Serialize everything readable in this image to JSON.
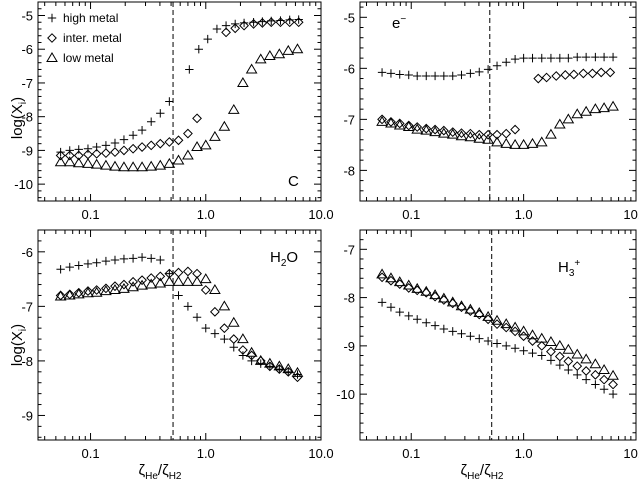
{
  "figure": {
    "xlabel_main": "ζ",
    "xlabel_sub1": "He",
    "xlabel_sep": "/ζ",
    "xlabel_sub2": "H2",
    "ylabel": "log(X",
    "ylabel_sub": "i",
    "ylabel_close": ")"
  },
  "chart_data": [
    {
      "type": "scatter",
      "panel_label": "C",
      "xscale": "log",
      "xlim": [
        0.035,
        10
      ],
      "ylim": [
        -10.5,
        -4.6
      ],
      "xticks": [
        0.1,
        1.0,
        10.0
      ],
      "xticklabels": [
        "0.1",
        "1.0",
        "10.0"
      ],
      "yticks": [
        -10,
        -9,
        -8,
        -7,
        -6,
        -5
      ],
      "yticklabels": [
        "-10",
        "-9",
        "-8",
        "-7",
        "-6",
        "-5"
      ],
      "vline": 0.52,
      "legend": {
        "position": "top-left",
        "entries": [
          "high metal",
          "inter. metal",
          "low metal"
        ]
      },
      "series": [
        {
          "name": "high metal",
          "marker": "plus",
          "x": [
            0.055,
            0.066,
            0.079,
            0.095,
            0.113,
            0.136,
            0.163,
            0.195,
            0.234,
            0.28,
            0.336,
            0.403,
            0.483,
            0.72,
            0.87,
            1.04,
            1.25,
            1.5,
            1.8,
            2.15,
            2.6,
            3.1,
            3.7,
            4.45,
            5.35,
            6.4
          ],
          "y": [
            -9.05,
            -9.0,
            -8.97,
            -8.95,
            -8.9,
            -8.85,
            -8.78,
            -8.68,
            -8.55,
            -8.4,
            -8.15,
            -7.9,
            -7.55,
            -6.6,
            -6.0,
            -5.7,
            -5.4,
            -5.3,
            -5.25,
            -5.22,
            -5.2,
            -5.18,
            -5.16,
            -5.15,
            -5.13,
            -5.12
          ]
        },
        {
          "name": "inter. metal",
          "marker": "diamond",
          "x": [
            0.055,
            0.066,
            0.079,
            0.095,
            0.113,
            0.136,
            0.163,
            0.195,
            0.234,
            0.28,
            0.336,
            0.403,
            0.483,
            0.58,
            0.7,
            0.84,
            1.5,
            1.8,
            2.15,
            2.6,
            3.1,
            3.7,
            4.45,
            5.35,
            6.4
          ],
          "y": [
            -9.15,
            -9.15,
            -9.15,
            -9.12,
            -9.1,
            -9.08,
            -9.05,
            -9.0,
            -8.95,
            -8.9,
            -8.85,
            -8.8,
            -8.75,
            -8.7,
            -8.5,
            -8.05,
            -5.5,
            -5.38,
            -5.3,
            -5.25,
            -5.22,
            -5.2,
            -5.2,
            -5.2,
            -5.2
          ]
        },
        {
          "name": "low metal",
          "marker": "triangle",
          "x": [
            0.055,
            0.066,
            0.079,
            0.095,
            0.113,
            0.136,
            0.163,
            0.195,
            0.234,
            0.28,
            0.336,
            0.403,
            0.483,
            0.58,
            0.7,
            0.84,
            1.0,
            1.2,
            1.45,
            1.75,
            2.1,
            2.5,
            3.0,
            3.6,
            4.35,
            5.2,
            6.25
          ],
          "y": [
            -9.35,
            -9.35,
            -9.38,
            -9.4,
            -9.42,
            -9.45,
            -9.48,
            -9.5,
            -9.5,
            -9.5,
            -9.48,
            -9.45,
            -9.4,
            -9.3,
            -9.15,
            -8.9,
            -8.85,
            -8.6,
            -8.3,
            -7.8,
            -7.0,
            -6.6,
            -6.3,
            -6.2,
            -6.15,
            -6.05,
            -6.0
          ]
        }
      ]
    },
    {
      "type": "scatter",
      "panel_label": "e",
      "panel_label_sup": "−",
      "xscale": "log",
      "xlim": [
        0.035,
        10
      ],
      "ylim": [
        -8.6,
        -4.7
      ],
      "xticks": [
        0.1,
        1.0,
        10.0
      ],
      "xticklabels": [
        "0.1",
        "1.0",
        "10.0"
      ],
      "yticks": [
        -8,
        -7,
        -6,
        -5
      ],
      "yticklabels": [
        "-8",
        "-7",
        "-6",
        "-5"
      ],
      "vline": 0.5,
      "series": [
        {
          "name": "high metal",
          "marker": "plus",
          "x": [
            0.055,
            0.066,
            0.079,
            0.095,
            0.113,
            0.136,
            0.163,
            0.195,
            0.234,
            0.28,
            0.336,
            0.403,
            0.483,
            0.58,
            0.7,
            0.84,
            1.0,
            1.2,
            1.45,
            1.75,
            2.1,
            2.5,
            3.0,
            3.6,
            4.35,
            5.2,
            6.25
          ],
          "y": [
            -6.08,
            -6.1,
            -6.12,
            -6.13,
            -6.15,
            -6.15,
            -6.15,
            -6.15,
            -6.15,
            -6.13,
            -6.1,
            -6.07,
            -6.02,
            -5.95,
            -5.88,
            -5.82,
            -5.8,
            -5.8,
            -5.8,
            -5.8,
            -5.8,
            -5.8,
            -5.78,
            -5.78,
            -5.78,
            -5.78,
            -5.78
          ]
        },
        {
          "name": "inter. metal",
          "marker": "diamond",
          "x": [
            0.055,
            0.066,
            0.079,
            0.095,
            0.113,
            0.136,
            0.163,
            0.195,
            0.234,
            0.28,
            0.336,
            0.403,
            0.483,
            0.58,
            0.7,
            0.84,
            1.35,
            1.6,
            1.95,
            2.35,
            2.8,
            3.4,
            4.1,
            4.9,
            5.9
          ],
          "y": [
            -7.0,
            -7.05,
            -7.08,
            -7.12,
            -7.15,
            -7.18,
            -7.2,
            -7.22,
            -7.25,
            -7.27,
            -7.28,
            -7.3,
            -7.3,
            -7.3,
            -7.28,
            -7.2,
            -6.2,
            -6.18,
            -6.15,
            -6.13,
            -6.12,
            -6.1,
            -6.1,
            -6.08,
            -6.08
          ]
        },
        {
          "name": "low metal",
          "marker": "triangle",
          "x": [
            0.055,
            0.066,
            0.079,
            0.095,
            0.113,
            0.136,
            0.163,
            0.195,
            0.234,
            0.28,
            0.336,
            0.403,
            0.483,
            0.58,
            0.7,
            0.84,
            1.0,
            1.2,
            1.45,
            1.75,
            2.1,
            2.5,
            3.0,
            3.6,
            4.35,
            5.2,
            6.25
          ],
          "y": [
            -7.05,
            -7.08,
            -7.12,
            -7.15,
            -7.2,
            -7.22,
            -7.25,
            -7.28,
            -7.3,
            -7.33,
            -7.35,
            -7.38,
            -7.4,
            -7.45,
            -7.48,
            -7.5,
            -7.5,
            -7.48,
            -7.45,
            -7.3,
            -7.1,
            -7.0,
            -6.9,
            -6.85,
            -6.8,
            -6.78,
            -6.75
          ]
        }
      ]
    },
    {
      "type": "scatter",
      "panel_label": "H",
      "panel_label_sub": "2",
      "panel_label_tail": "O",
      "xscale": "log",
      "xlim": [
        0.035,
        10
      ],
      "ylim": [
        -9.45,
        -5.6
      ],
      "xticks": [
        0.1,
        1.0,
        10.0
      ],
      "xticklabels": [
        "0.1",
        "1.0",
        "10.0"
      ],
      "yticks": [
        -9,
        -8,
        -7,
        -6
      ],
      "yticklabels": [
        "-9",
        "-8",
        "-7",
        "-6"
      ],
      "vline": 0.52,
      "series": [
        {
          "name": "high metal",
          "marker": "plus",
          "x": [
            0.055,
            0.066,
            0.079,
            0.095,
            0.113,
            0.136,
            0.163,
            0.195,
            0.234,
            0.28,
            0.336,
            0.403,
            0.483,
            0.58,
            0.7,
            0.84,
            1.0,
            1.2,
            1.45,
            1.75,
            2.1,
            2.5,
            3.0,
            3.6,
            4.35,
            5.2,
            6.25
          ],
          "y": [
            -6.32,
            -6.28,
            -6.25,
            -6.22,
            -6.2,
            -6.17,
            -6.15,
            -6.13,
            -6.12,
            -6.1,
            -6.12,
            -6.15,
            -6.4,
            -6.8,
            -7.0,
            -7.2,
            -7.4,
            -7.5,
            -7.6,
            -7.75,
            -7.9,
            -8.0,
            -8.05,
            -8.1,
            -8.15,
            -8.2,
            -8.25
          ]
        },
        {
          "name": "inter. metal",
          "marker": "diamond",
          "x": [
            0.055,
            0.066,
            0.079,
            0.095,
            0.113,
            0.136,
            0.163,
            0.195,
            0.234,
            0.28,
            0.336,
            0.403,
            0.483,
            0.58,
            0.7,
            0.84,
            1.0,
            1.2,
            1.45,
            1.75,
            2.1,
            2.5,
            3.0,
            3.6,
            4.35,
            5.2,
            6.25
          ],
          "y": [
            -6.8,
            -6.78,
            -6.75,
            -6.72,
            -6.7,
            -6.67,
            -6.63,
            -6.6,
            -6.55,
            -6.52,
            -6.48,
            -6.45,
            -6.4,
            -6.38,
            -6.36,
            -6.4,
            -6.7,
            -7.1,
            -7.4,
            -7.6,
            -7.8,
            -7.9,
            -8.0,
            -8.1,
            -8.15,
            -8.2,
            -8.3
          ]
        },
        {
          "name": "low metal",
          "marker": "triangle",
          "x": [
            0.055,
            0.066,
            0.079,
            0.095,
            0.113,
            0.136,
            0.163,
            0.195,
            0.234,
            0.28,
            0.336,
            0.403,
            0.483,
            0.58,
            0.7,
            0.84,
            1.0,
            1.2,
            1.45,
            1.75,
            2.1,
            2.5,
            3.0,
            3.6,
            4.35,
            5.2,
            6.25
          ],
          "y": [
            -6.82,
            -6.8,
            -6.78,
            -6.76,
            -6.75,
            -6.72,
            -6.7,
            -6.68,
            -6.65,
            -6.62,
            -6.6,
            -6.58,
            -6.55,
            -6.55,
            -6.55,
            -6.55,
            -6.5,
            -6.7,
            -7.0,
            -7.3,
            -7.6,
            -7.85,
            -8.0,
            -8.05,
            -8.1,
            -8.15,
            -8.22
          ]
        }
      ]
    },
    {
      "type": "scatter",
      "panel_label": "H",
      "panel_label_sub": "3",
      "panel_label_sup": "+",
      "xscale": "log",
      "xlim": [
        0.035,
        10
      ],
      "ylim": [
        -10.95,
        -6.6
      ],
      "xticks": [
        0.1,
        1.0,
        10.0
      ],
      "xticklabels": [
        "0.1",
        "1.0",
        "10.0"
      ],
      "yticks": [
        -10,
        -9,
        -8,
        -7
      ],
      "yticklabels": [
        "-10",
        "-9",
        "-8",
        "-7"
      ],
      "vline": 0.52,
      "series": [
        {
          "name": "high metal",
          "marker": "plus",
          "x": [
            0.055,
            0.066,
            0.079,
            0.095,
            0.113,
            0.136,
            0.163,
            0.195,
            0.234,
            0.28,
            0.336,
            0.403,
            0.483,
            0.58,
            0.7,
            0.84,
            1.0,
            1.2,
            1.45,
            1.75,
            2.1,
            2.5,
            3.0,
            3.6,
            4.35,
            5.2,
            6.25
          ],
          "y": [
            -8.1,
            -8.2,
            -8.3,
            -8.38,
            -8.45,
            -8.52,
            -8.58,
            -8.65,
            -8.7,
            -8.75,
            -8.8,
            -8.85,
            -8.9,
            -8.95,
            -9.0,
            -9.05,
            -9.1,
            -9.15,
            -9.2,
            -9.3,
            -9.4,
            -9.5,
            -9.6,
            -9.7,
            -9.8,
            -9.9,
            -10.0
          ]
        },
        {
          "name": "inter. metal",
          "marker": "diamond",
          "x": [
            0.055,
            0.066,
            0.079,
            0.095,
            0.113,
            0.136,
            0.163,
            0.195,
            0.234,
            0.28,
            0.336,
            0.403,
            0.483,
            0.58,
            0.7,
            0.84,
            1.0,
            1.2,
            1.45,
            1.75,
            2.1,
            2.5,
            3.0,
            3.6,
            4.35,
            5.2,
            6.25
          ],
          "y": [
            -7.58,
            -7.65,
            -7.72,
            -7.8,
            -7.85,
            -7.9,
            -7.98,
            -8.05,
            -8.12,
            -8.2,
            -8.28,
            -8.35,
            -8.45,
            -8.55,
            -8.62,
            -8.7,
            -8.8,
            -8.9,
            -9.0,
            -9.12,
            -9.22,
            -9.32,
            -9.42,
            -9.52,
            -9.6,
            -9.7,
            -9.8
          ]
        },
        {
          "name": "low metal",
          "marker": "triangle",
          "x": [
            0.055,
            0.066,
            0.079,
            0.095,
            0.113,
            0.136,
            0.163,
            0.195,
            0.234,
            0.28,
            0.336,
            0.403,
            0.483,
            0.58,
            0.7,
            0.84,
            1.0,
            1.2,
            1.45,
            1.75,
            2.1,
            2.5,
            3.0,
            3.6,
            4.35,
            5.2,
            6.25
          ],
          "y": [
            -7.52,
            -7.6,
            -7.68,
            -7.75,
            -7.82,
            -7.88,
            -7.95,
            -8.02,
            -8.1,
            -8.18,
            -8.25,
            -8.32,
            -8.4,
            -8.48,
            -8.55,
            -8.62,
            -8.7,
            -8.78,
            -8.85,
            -8.92,
            -9.0,
            -9.08,
            -9.18,
            -9.28,
            -9.38,
            -9.5,
            -9.62
          ]
        }
      ]
    }
  ]
}
